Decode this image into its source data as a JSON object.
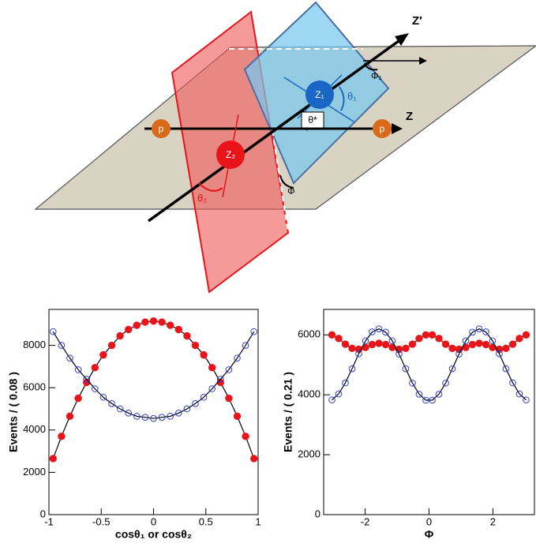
{
  "diagram": {
    "labels": {
      "z_prime": "Z′",
      "z": "Z",
      "p_left": "p",
      "p_right": "p",
      "z1": "Z₁",
      "z2": "Z₂",
      "theta1": "θ₁",
      "theta2": "θ₂",
      "theta_star": "θ*",
      "phi": "Φ",
      "phi1": "Φ₁"
    }
  },
  "chart_data": [
    {
      "type": "scatter",
      "xlabel": "cosθ₁ or cosθ₂",
      "ylabel": "Events / ( 0.08 )",
      "x": [
        -0.96,
        -0.88,
        -0.8,
        -0.72,
        -0.64,
        -0.56,
        -0.48,
        -0.4,
        -0.32,
        -0.24,
        -0.16,
        -0.08,
        0,
        0.08,
        0.16,
        0.24,
        0.32,
        0.4,
        0.48,
        0.56,
        0.64,
        0.72,
        0.8,
        0.88,
        0.96
      ],
      "series": [
        {
          "color": "#e8141a",
          "marker": "filled",
          "values": [
            2650,
            3700,
            4650,
            5500,
            6250,
            6950,
            7550,
            8000,
            8450,
            8750,
            8950,
            9100,
            9150,
            9100,
            8950,
            8750,
            8450,
            8000,
            7550,
            6950,
            6250,
            5500,
            4650,
            3700,
            2650
          ]
        },
        {
          "color": "#2a3fd0",
          "marker": "open",
          "values": [
            8650,
            8000,
            7400,
            6850,
            6400,
            5950,
            5550,
            5250,
            5000,
            4800,
            4650,
            4600,
            4550,
            4600,
            4650,
            4800,
            5000,
            5250,
            5550,
            5950,
            6400,
            6850,
            7400,
            8000,
            8650
          ]
        }
      ],
      "fit_line": true,
      "xlim": [
        -1,
        1
      ],
      "xticks": [
        -1,
        -0.5,
        0,
        0.5,
        1
      ],
      "ylim": [
        0,
        9700
      ],
      "yticks": [
        0,
        2000,
        4000,
        6000,
        8000
      ]
    },
    {
      "type": "scatter",
      "xlabel": "Φ",
      "ylabel": "Events / ( 0.21 )",
      "x": [
        -3.04,
        -2.83,
        -2.62,
        -2.41,
        -2.2,
        -1.99,
        -1.78,
        -1.57,
        -1.36,
        -1.15,
        -0.94,
        -0.73,
        -0.52,
        -0.31,
        -0.1,
        0.1,
        0.31,
        0.52,
        0.73,
        0.94,
        1.15,
        1.36,
        1.57,
        1.78,
        1.99,
        2.2,
        2.41,
        2.62,
        2.83,
        3.04
      ],
      "series": [
        {
          "color": "#e8141a",
          "marker": "filled",
          "values": [
            6000,
            5880,
            5690,
            5550,
            5520,
            5580,
            5680,
            5720,
            5680,
            5580,
            5520,
            5550,
            5690,
            5880,
            6000,
            6000,
            5880,
            5690,
            5550,
            5520,
            5580,
            5680,
            5720,
            5680,
            5580,
            5520,
            5550,
            5690,
            5880,
            6000
          ]
        },
        {
          "color": "#2a3fd0",
          "marker": "open",
          "values": [
            3830,
            4030,
            4400,
            4870,
            5370,
            5800,
            6100,
            6200,
            6090,
            5800,
            5360,
            4870,
            4390,
            4020,
            3820,
            3820,
            4020,
            4390,
            4870,
            5360,
            5800,
            6090,
            6200,
            6100,
            5800,
            5370,
            4870,
            4400,
            4030,
            3830
          ]
        }
      ],
      "fit_line": true,
      "xlim": [
        -3.3,
        3.3
      ],
      "xticks": [
        -2,
        0,
        2
      ],
      "ylim": [
        0,
        6850
      ],
      "yticks": [
        0,
        2000,
        4000,
        6000
      ]
    }
  ]
}
